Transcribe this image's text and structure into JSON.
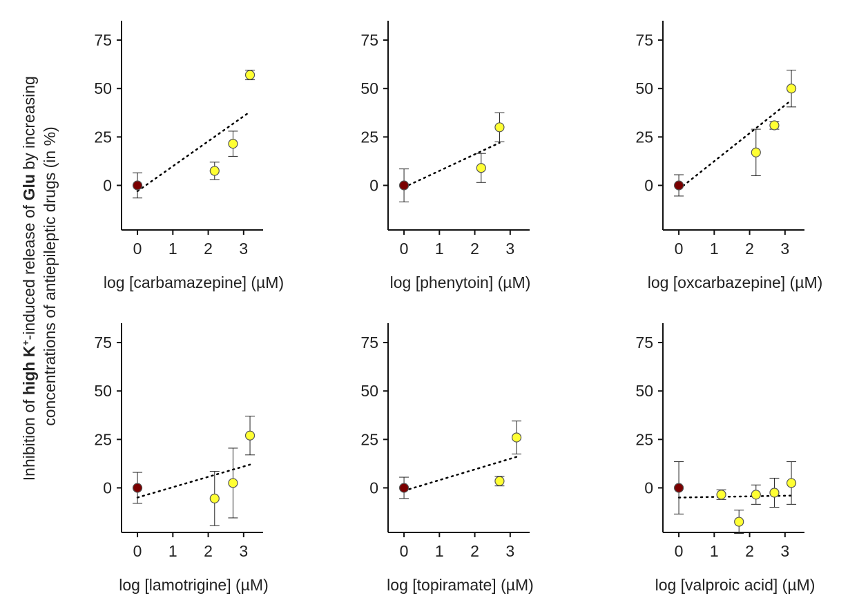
{
  "figure": {
    "ylabel_line1_parts": [
      {
        "text": "Inhibition of ",
        "bold": false
      },
      {
        "text": "high K",
        "bold": true
      },
      {
        "text": "+",
        "bold": true,
        "sup": true
      },
      {
        "text": "-induced release of ",
        "bold": false
      },
      {
        "text": "Glu",
        "bold": true
      },
      {
        "text": " by increasing",
        "bold": false
      }
    ],
    "ylabel_line2": "concentrations of antiepileptic drugs (in %)",
    "colors": {
      "control": "#7a0000",
      "drug": "#ffff33",
      "marker_edge": "#555555",
      "axis": "#111111"
    }
  },
  "chart_data": [
    {
      "type": "scatter",
      "xlabel": "log [carbamazepine] (µM)",
      "ylabel": "",
      "xlim": [
        -0.45,
        3.55
      ],
      "ylim": [
        -23,
        85
      ],
      "xticks": [
        0,
        1,
        2,
        3
      ],
      "yticks": [
        0,
        25,
        50,
        75
      ],
      "grid": false,
      "points": [
        {
          "x": 0,
          "y": 0,
          "err": 6.5,
          "group": "control"
        },
        {
          "x": 2.18,
          "y": 7.5,
          "err": 4.5,
          "group": "drug"
        },
        {
          "x": 2.7,
          "y": 21.5,
          "err": 6.5,
          "group": "drug"
        },
        {
          "x": 3.18,
          "y": 57,
          "err": 2.5,
          "group": "drug"
        }
      ],
      "trend": {
        "x": [
          0,
          3.18
        ],
        "y": [
          -3,
          38
        ]
      }
    },
    {
      "type": "scatter",
      "xlabel": "log [phenytoin] (µM)",
      "ylabel": "",
      "xlim": [
        -0.45,
        3.55
      ],
      "ylim": [
        -23,
        85
      ],
      "xticks": [
        0,
        1,
        2,
        3
      ],
      "yticks": [
        0,
        25,
        50,
        75
      ],
      "grid": false,
      "points": [
        {
          "x": 0,
          "y": 0,
          "err": 8.5,
          "group": "control"
        },
        {
          "x": 2.18,
          "y": 9,
          "err": 7.5,
          "group": "drug"
        },
        {
          "x": 2.7,
          "y": 30,
          "err": 7.5,
          "group": "drug"
        }
      ],
      "trend": {
        "x": [
          0,
          2.7
        ],
        "y": [
          -1,
          22
        ]
      }
    },
    {
      "type": "scatter",
      "xlabel": "log [oxcarbazepine] (µM)",
      "ylabel": "",
      "xlim": [
        -0.45,
        3.55
      ],
      "ylim": [
        -23,
        85
      ],
      "xticks": [
        0,
        1,
        2,
        3
      ],
      "yticks": [
        0,
        25,
        50,
        75
      ],
      "grid": false,
      "points": [
        {
          "x": 0,
          "y": 0,
          "err": 5.5,
          "group": "control"
        },
        {
          "x": 2.18,
          "y": 17,
          "err": 12,
          "group": "drug"
        },
        {
          "x": 2.7,
          "y": 31,
          "err": 2,
          "group": "drug"
        },
        {
          "x": 3.18,
          "y": 50,
          "err": 9.5,
          "group": "drug"
        }
      ],
      "trend": {
        "x": [
          0,
          3.18
        ],
        "y": [
          -2,
          44
        ]
      }
    },
    {
      "type": "scatter",
      "xlabel": "log [lamotrigine] (µM)",
      "ylabel": "",
      "xlim": [
        -0.45,
        3.55
      ],
      "ylim": [
        -23,
        85
      ],
      "xticks": [
        0,
        1,
        2,
        3
      ],
      "yticks": [
        0,
        25,
        50,
        75
      ],
      "grid": false,
      "points": [
        {
          "x": 0,
          "y": 0,
          "err": 8,
          "group": "control"
        },
        {
          "x": 2.18,
          "y": -5.5,
          "err": 14,
          "group": "drug"
        },
        {
          "x": 2.7,
          "y": 2.5,
          "err": 18,
          "group": "drug"
        },
        {
          "x": 3.18,
          "y": 27,
          "err": 10,
          "group": "drug"
        }
      ],
      "trend": {
        "x": [
          0,
          3.18
        ],
        "y": [
          -5,
          12
        ]
      }
    },
    {
      "type": "scatter",
      "xlabel": "log [topiramate] (µM)",
      "ylabel": "",
      "xlim": [
        -0.45,
        3.55
      ],
      "ylim": [
        -23,
        85
      ],
      "xticks": [
        0,
        1,
        2,
        3
      ],
      "yticks": [
        0,
        25,
        50,
        75
      ],
      "grid": false,
      "points": [
        {
          "x": 0,
          "y": 0,
          "err": 5.5,
          "group": "control"
        },
        {
          "x": 2.7,
          "y": 3.5,
          "err": 2.5,
          "group": "drug"
        },
        {
          "x": 3.18,
          "y": 26,
          "err": 8.5,
          "group": "drug"
        }
      ],
      "trend": {
        "x": [
          0,
          3.18
        ],
        "y": [
          -1.5,
          16
        ]
      }
    },
    {
      "type": "scatter",
      "xlabel": "log [valproic acid] (µM)",
      "ylabel": "",
      "xlim": [
        -0.45,
        3.55
      ],
      "ylim": [
        -23,
        85
      ],
      "xticks": [
        0,
        1,
        2,
        3
      ],
      "yticks": [
        0,
        25,
        50,
        75
      ],
      "grid": false,
      "points": [
        {
          "x": 0,
          "y": 0,
          "err": 13.5,
          "group": "control"
        },
        {
          "x": 1.2,
          "y": -3.5,
          "err": 2.5,
          "group": "drug"
        },
        {
          "x": 1.7,
          "y": -17.5,
          "err": 6,
          "group": "drug"
        },
        {
          "x": 2.18,
          "y": -3.5,
          "err": 5,
          "group": "drug"
        },
        {
          "x": 2.7,
          "y": -2.5,
          "err": 7.5,
          "group": "drug"
        },
        {
          "x": 3.18,
          "y": 2.5,
          "err": 11,
          "group": "drug"
        }
      ],
      "trend": {
        "x": [
          0,
          3.18
        ],
        "y": [
          -5,
          -4
        ]
      }
    }
  ]
}
